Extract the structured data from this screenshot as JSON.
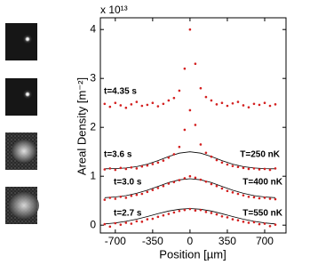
{
  "chart_data": {
    "type": "scatter",
    "xlabel": "Position [µm]",
    "ylabel": "Areal Density [m⁻²]",
    "y_multiplier": "x 10¹³",
    "annotations": [
      "t=4.35 s",
      "t=3.6 s",
      "T=250 nK",
      "t=3.0 s",
      "T=400 nK",
      "t=2.7 s",
      "T=550 nK"
    ],
    "xlim": [
      -840,
      900
    ],
    "ylim": [
      -0.16,
      4.24
    ],
    "xticks": [
      -700,
      -350,
      0,
      350,
      700
    ],
    "yticks": [
      0,
      1,
      2,
      3,
      4
    ],
    "x": [
      -800,
      -750,
      -700,
      -650,
      -600,
      -550,
      -500,
      -450,
      -400,
      -350,
      -300,
      -250,
      -200,
      -150,
      -100,
      -50,
      0,
      50,
      100,
      150,
      200,
      250,
      300,
      350,
      400,
      450,
      500,
      550,
      600,
      650,
      700,
      750,
      800
    ],
    "series": [
      {
        "color": "#d42020",
        "values": [
          2.48,
          2.42,
          2.5,
          2.45,
          2.4,
          2.47,
          2.52,
          2.44,
          2.46,
          2.5,
          2.43,
          2.48,
          2.55,
          2.6,
          2.75,
          3.2,
          4.0,
          3.3,
          2.8,
          2.62,
          2.55,
          2.47,
          2.5,
          2.44,
          2.49,
          2.52,
          2.45,
          2.41,
          2.48,
          2.46,
          2.5,
          2.44,
          2.47
        ]
      },
      {
        "color": "#d42020",
        "values": [
          1.14,
          1.16,
          1.13,
          1.17,
          1.15,
          1.18,
          1.16,
          1.2,
          1.22,
          1.25,
          1.28,
          1.32,
          1.38,
          1.45,
          1.6,
          1.95,
          2.35,
          2.05,
          1.65,
          1.48,
          1.4,
          1.33,
          1.28,
          1.24,
          1.21,
          1.19,
          1.17,
          1.15,
          1.16,
          1.14,
          1.15,
          1.13,
          1.16
        ]
      },
      {
        "color": "#d42020",
        "values": [
          0.52,
          0.56,
          0.54,
          0.58,
          0.56,
          0.6,
          0.62,
          0.64,
          0.68,
          0.72,
          0.76,
          0.8,
          0.85,
          0.88,
          0.92,
          0.96,
          1.0,
          0.97,
          0.93,
          0.89,
          0.84,
          0.8,
          0.75,
          0.7,
          0.67,
          0.64,
          0.61,
          0.58,
          0.57,
          0.55,
          0.56,
          0.54,
          0.53
        ]
      },
      {
        "color": "#d42020",
        "values": [
          0.02,
          -0.03,
          0.04,
          0.01,
          0.05,
          0.03,
          0.08,
          0.07,
          0.12,
          0.13,
          0.17,
          0.2,
          0.23,
          0.26,
          0.29,
          0.31,
          0.33,
          0.3,
          0.31,
          0.27,
          0.25,
          0.22,
          0.18,
          0.16,
          0.12,
          0.1,
          0.07,
          0.05,
          0.06,
          0.02,
          0.03,
          -0.02,
          0.01
        ]
      }
    ],
    "fits": [
      {
        "color": "#000000",
        "x": [
          -800,
          -700,
          -600,
          -500,
          -400,
          -300,
          -200,
          -100,
          0,
          100,
          200,
          300,
          400,
          500,
          600,
          700,
          800
        ],
        "values": [
          1.152,
          1.157,
          1.17,
          1.197,
          1.247,
          1.32,
          1.404,
          1.473,
          1.5,
          1.473,
          1.404,
          1.32,
          1.247,
          1.197,
          1.17,
          1.157,
          1.152
        ]
      },
      {
        "color": "#000000",
        "x": [
          -800,
          -700,
          -600,
          -500,
          -400,
          -300,
          -200,
          -100,
          0,
          100,
          200,
          300,
          400,
          500,
          600,
          700,
          800
        ],
        "values": [
          0.561,
          0.576,
          0.604,
          0.65,
          0.714,
          0.793,
          0.87,
          0.928,
          0.95,
          0.928,
          0.87,
          0.793,
          0.714,
          0.65,
          0.604,
          0.576,
          0.561
        ]
      },
      {
        "color": "#000000",
        "x": [
          -800,
          -700,
          -600,
          -500,
          -400,
          -300,
          -200,
          -100,
          0,
          100,
          200,
          300,
          400,
          500,
          600,
          700,
          800
        ],
        "values": [
          0.025,
          0.046,
          0.078,
          0.122,
          0.177,
          0.235,
          0.289,
          0.326,
          0.34,
          0.326,
          0.289,
          0.235,
          0.177,
          0.122,
          0.078,
          0.046,
          0.025
        ]
      }
    ]
  }
}
